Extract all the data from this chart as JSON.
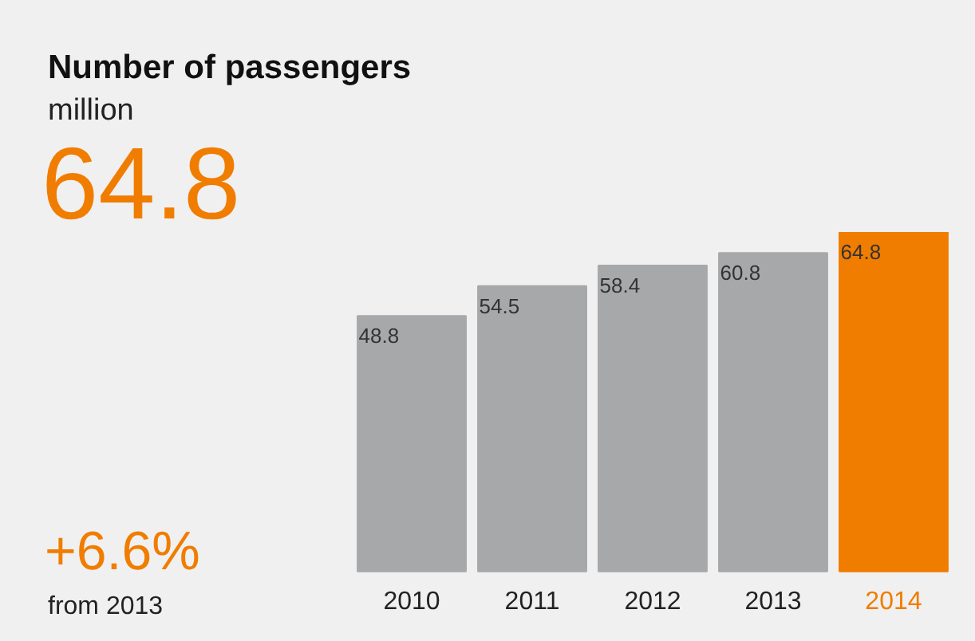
{
  "chart_data": {
    "type": "bar",
    "title": "Number of passengers",
    "subtitle": "million",
    "annotations": [
      "64.8",
      "+6.6%",
      "from 2013"
    ],
    "categories": [
      "2010",
      "2011",
      "2012",
      "2013",
      "2014"
    ],
    "values": [
      48.8,
      54.5,
      58.4,
      60.8,
      64.8
    ],
    "colors": [
      "#a7a8aa",
      "#a7a8aa",
      "#a7a8aa",
      "#a7a8aa",
      "#f07d00"
    ],
    "data_labels": true
  }
}
